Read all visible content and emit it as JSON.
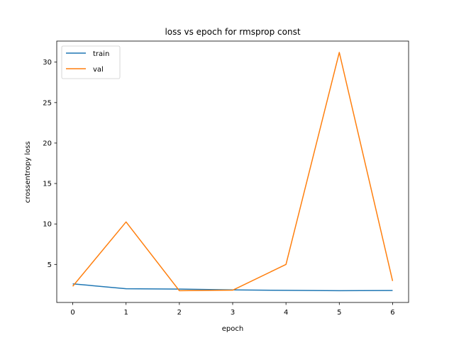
{
  "chart_data": {
    "type": "line",
    "title": "loss vs epoch for rmsprop const",
    "xlabel": "epoch",
    "ylabel": "crossentropy loss",
    "x": [
      0,
      1,
      2,
      3,
      4,
      5,
      6
    ],
    "xlim": [
      -0.3,
      6.3
    ],
    "ylim": [
      0.3,
      32.6
    ],
    "xticks": [
      "0",
      "1",
      "2",
      "3",
      "4",
      "5",
      "6"
    ],
    "yticks": [
      "5",
      "10",
      "15",
      "20",
      "25",
      "30"
    ],
    "grid": false,
    "legend_position": "top-left",
    "series": [
      {
        "name": "train",
        "color": "#1f77b4",
        "values": [
          2.6,
          2.0,
          1.95,
          1.85,
          1.8,
          1.75,
          1.78
        ]
      },
      {
        "name": "val",
        "color": "#ff7f0e",
        "values": [
          2.3,
          10.25,
          1.75,
          1.82,
          5.0,
          31.2,
          2.95
        ]
      }
    ]
  }
}
